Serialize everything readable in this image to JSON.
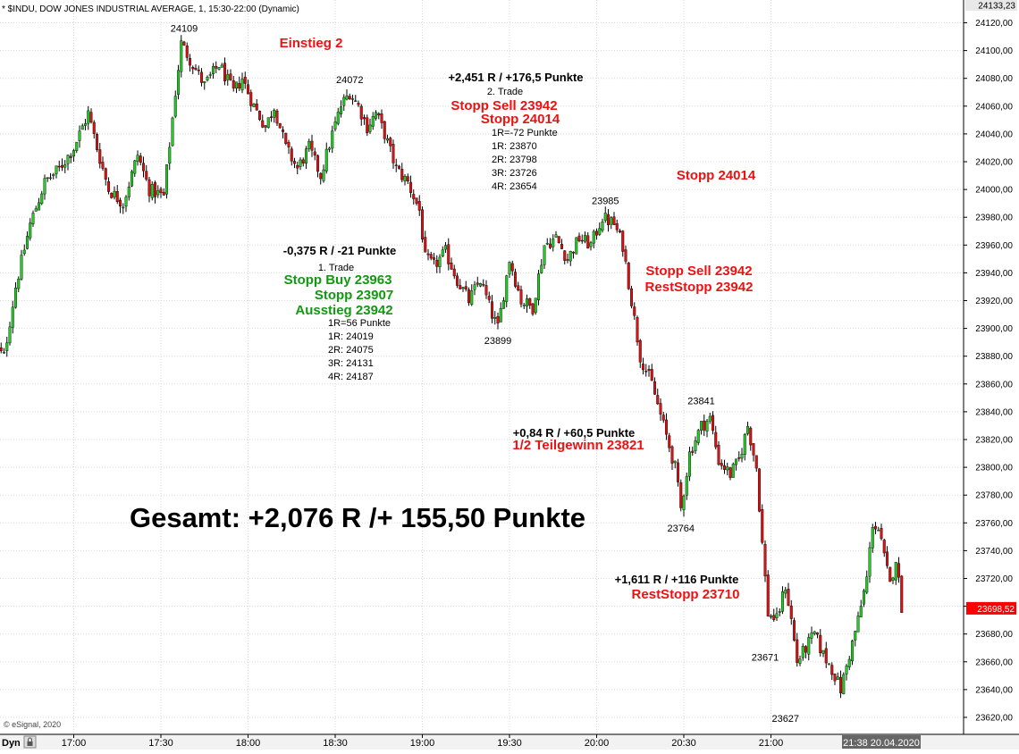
{
  "header": {
    "title": "* $INDU, DOW JONES INDUSTRIAL AVERAGE, 1, 15:30-22:00 (Dynamic)"
  },
  "footer": {
    "copyright": "© eSignal, 2020",
    "mode_label": "Dyn",
    "datetime": "21:38 20.04.2020"
  },
  "colors": {
    "up": "#22cc22",
    "down": "#dd1111",
    "wick": "#000000",
    "grid": "#d8d8d8",
    "price_badge_bg": "#ff0000",
    "red_text": "#ee1111",
    "green_text": "#119911"
  },
  "chart_data": {
    "type": "candlestick",
    "x_tick_labels": [
      "17:00",
      "17:30",
      "18:00",
      "18:30",
      "19:00",
      "19:30",
      "20:00",
      "20:30",
      "21:00"
    ],
    "x_tick_times": [
      "17:00",
      "17:30",
      "18:00",
      "18:30",
      "19:00",
      "19:30",
      "20:00",
      "20:30",
      "21:00"
    ],
    "ylim": [
      23610,
      24134
    ],
    "y_ticks": [
      23620,
      23640,
      23660,
      23680,
      23700,
      23720,
      23740,
      23760,
      23780,
      23800,
      23820,
      23840,
      23860,
      23880,
      23900,
      23920,
      23940,
      23960,
      23980,
      24000,
      24020,
      24040,
      24060,
      24080,
      24100,
      24120
    ],
    "y_tick_labels": [
      "23620,00",
      "23640,00",
      "23660,00",
      "23680,00",
      "23700,00",
      "23720,00",
      "23740,00",
      "23760,00",
      "23780,00",
      "23800,00",
      "23820,00",
      "23840,00",
      "23860,00",
      "23880,00",
      "23900,00",
      "23920,00",
      "23940,00",
      "23960,00",
      "23980,00",
      "24000,00",
      "24020,00",
      "24040,00",
      "24060,00",
      "24080,00",
      "24100,00",
      "24120,00"
    ],
    "top_price_label": "24133,23",
    "last_price": 23698.52,
    "last_price_label": "23698,52",
    "close_anchors": [
      {
        "time": "16:33",
        "value": 23885
      },
      {
        "time": "16:36",
        "value": 23880
      },
      {
        "time": "16:40",
        "value": 23930
      },
      {
        "time": "16:45",
        "value": 23975
      },
      {
        "time": "16:50",
        "value": 24005
      },
      {
        "time": "16:55",
        "value": 24015
      },
      {
        "time": "17:00",
        "value": 24030
      },
      {
        "time": "17:05",
        "value": 24055
      },
      {
        "time": "17:08",
        "value": 24030
      },
      {
        "time": "17:12",
        "value": 24000
      },
      {
        "time": "17:17",
        "value": 23990
      },
      {
        "time": "17:22",
        "value": 24025
      },
      {
        "time": "17:26",
        "value": 24000
      },
      {
        "time": "17:31",
        "value": 23995
      },
      {
        "time": "17:35",
        "value": 24070
      },
      {
        "time": "17:37",
        "value": 24105
      },
      {
        "time": "17:41",
        "value": 24090
      },
      {
        "time": "17:45",
        "value": 24075
      },
      {
        "time": "17:50",
        "value": 24090
      },
      {
        "time": "17:55",
        "value": 24070
      },
      {
        "time": "17:58",
        "value": 24080
      },
      {
        "time": "18:02",
        "value": 24060
      },
      {
        "time": "18:06",
        "value": 24045
      },
      {
        "time": "18:09",
        "value": 24060
      },
      {
        "time": "18:13",
        "value": 24030
      },
      {
        "time": "18:17",
        "value": 24015
      },
      {
        "time": "18:21",
        "value": 24030
      },
      {
        "time": "18:25",
        "value": 24010
      },
      {
        "time": "18:29",
        "value": 24040
      },
      {
        "time": "18:32",
        "value": 24060
      },
      {
        "time": "18:35",
        "value": 24070
      },
      {
        "time": "18:38",
        "value": 24060
      },
      {
        "time": "18:41",
        "value": 24045
      },
      {
        "time": "18:44",
        "value": 24055
      },
      {
        "time": "18:47",
        "value": 24040
      },
      {
        "time": "18:51",
        "value": 24015
      },
      {
        "time": "18:55",
        "value": 24005
      },
      {
        "time": "18:59",
        "value": 23985
      },
      {
        "time": "19:01",
        "value": 23950
      },
      {
        "time": "19:04",
        "value": 23945
      },
      {
        "time": "19:08",
        "value": 23955
      },
      {
        "time": "19:12",
        "value": 23935
      },
      {
        "time": "19:16",
        "value": 23920
      },
      {
        "time": "19:20",
        "value": 23935
      },
      {
        "time": "19:24",
        "value": 23910
      },
      {
        "time": "19:26",
        "value": 23900
      },
      {
        "time": "19:30",
        "value": 23950
      },
      {
        "time": "19:34",
        "value": 23920
      },
      {
        "time": "19:38",
        "value": 23915
      },
      {
        "time": "19:42",
        "value": 23960
      },
      {
        "time": "19:46",
        "value": 23965
      },
      {
        "time": "19:50",
        "value": 23950
      },
      {
        "time": "19:54",
        "value": 23965
      },
      {
        "time": "19:58",
        "value": 23960
      },
      {
        "time": "20:02",
        "value": 23980
      },
      {
        "time": "20:06",
        "value": 23975
      },
      {
        "time": "20:09",
        "value": 23960
      },
      {
        "time": "20:12",
        "value": 23920
      },
      {
        "time": "20:15",
        "value": 23880
      },
      {
        "time": "20:19",
        "value": 23860
      },
      {
        "time": "20:23",
        "value": 23830
      },
      {
        "time": "20:27",
        "value": 23800
      },
      {
        "time": "20:29",
        "value": 23770
      },
      {
        "time": "20:32",
        "value": 23810
      },
      {
        "time": "20:36",
        "value": 23830
      },
      {
        "time": "20:39",
        "value": 23835
      },
      {
        "time": "20:42",
        "value": 23805
      },
      {
        "time": "20:46",
        "value": 23795
      },
      {
        "time": "20:49",
        "value": 23805
      },
      {
        "time": "20:52",
        "value": 23830
      },
      {
        "time": "20:55",
        "value": 23800
      },
      {
        "time": "20:57",
        "value": 23745
      },
      {
        "time": "20:59",
        "value": 23695
      },
      {
        "time": "21:02",
        "value": 23690
      },
      {
        "time": "21:05",
        "value": 23715
      },
      {
        "time": "21:07",
        "value": 23690
      },
      {
        "time": "21:09",
        "value": 23660
      },
      {
        "time": "21:12",
        "value": 23670
      },
      {
        "time": "21:15",
        "value": 23680
      },
      {
        "time": "21:18",
        "value": 23665
      },
      {
        "time": "21:21",
        "value": 23655
      },
      {
        "time": "21:24",
        "value": 23640
      },
      {
        "time": "21:27",
        "value": 23665
      },
      {
        "time": "21:30",
        "value": 23690
      },
      {
        "time": "21:33",
        "value": 23720
      },
      {
        "time": "21:35",
        "value": 23760
      },
      {
        "time": "21:37",
        "value": 23755
      },
      {
        "time": "21:39",
        "value": 23735
      },
      {
        "time": "21:41",
        "value": 23715
      },
      {
        "time": "21:43",
        "value": 23735
      },
      {
        "time": "21:45",
        "value": 23700
      }
    ],
    "swing_labels": [
      {
        "time": "17:38",
        "value": 24109,
        "text": "24109",
        "pos": "above"
      },
      {
        "time": "18:35",
        "value": 24072,
        "text": "24072",
        "pos": "above"
      },
      {
        "time": "19:26",
        "value": 23899,
        "text": "23899",
        "pos": "below"
      },
      {
        "time": "20:03",
        "value": 23985,
        "text": "23985",
        "pos": "above"
      },
      {
        "time": "20:36",
        "value": 23841,
        "text": "23841",
        "pos": "above"
      },
      {
        "time": "20:29",
        "value": 23764,
        "text": "23764",
        "pos": "below"
      },
      {
        "time": "20:58",
        "value": 23671,
        "text": "23671",
        "pos": "below"
      },
      {
        "time": "21:05",
        "value": 23627,
        "text": "23627",
        "pos": "below"
      }
    ]
  },
  "annotations": {
    "einstieg2": "Einstieg 2",
    "trade2_result": "+2,451 R / +176,5 Punkte",
    "trade2_label": "2. Trade",
    "trade2_stopp_sell": "Stopp Sell 23942",
    "trade2_stopp": "Stopp 24014",
    "trade2_1r": "1R=-72 Punkte",
    "trade2_r1": "1R: 23870",
    "trade2_r2": "2R: 23798",
    "trade2_r3": "3R: 23726",
    "trade2_r4": "4R: 23654",
    "stopp_right": "Stopp 24014",
    "trade1_result": "-0,375 R / -21 Punkte",
    "trade1_label": "1. Trade",
    "trade1_stopp_buy": "Stopp Buy 23963",
    "trade1_stopp": "Stopp 23907",
    "trade1_ausstieg": "Ausstieg 23942",
    "trade1_1r": "1R=56 Punkte",
    "trade1_r1": "1R: 24019",
    "trade1_r2": "2R: 24075",
    "trade1_r3": "3R: 24131",
    "trade1_r4": "4R: 24187",
    "mid_stopp_sell": "Stopp Sell 23942",
    "mid_reststopp": "RestStopp 23942",
    "partial_result": "+0,84 R / +60,5 Punkte",
    "partial_label": "1/2 Teilgewinn 23821",
    "rest_result": "+1,611 R / +116 Punkte",
    "rest_label": "RestStopp 23710",
    "total": "Gesamt: +2,076 R /+ 155,50 Punkte"
  }
}
